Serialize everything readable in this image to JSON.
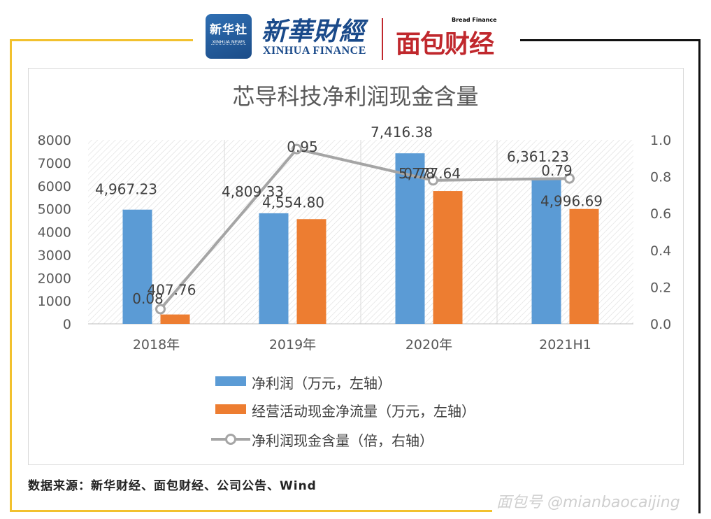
{
  "header": {
    "xinhua_logo_cn": "新华社",
    "xinhua_logo_en": "XINHUA NEWS",
    "xinhua_finance_cn": "新華財經",
    "xinhua_finance_en": "XINHUA FINANCE",
    "bread_finance_en": "Bread Finance",
    "bread_finance_cn": "面包财经"
  },
  "source_note": "数据来源：新华财经、面包财经、公司公告、Wind",
  "watermark": "面包号 @mianbaocaijing",
  "chart_data": {
    "type": "bar",
    "title": "芯导科技净利润现金含量",
    "categories": [
      "2018年",
      "2019年",
      "2020年",
      "2021H1"
    ],
    "ylim": [
      0,
      8000
    ],
    "yticks": [
      "0",
      "1000",
      "2000",
      "3000",
      "4000",
      "5000",
      "6000",
      "7000",
      "8000"
    ],
    "y2lim": [
      0,
      1.0
    ],
    "y2ticks": [
      "0.0",
      "0.2",
      "0.4",
      "0.6",
      "0.8",
      "1.0"
    ],
    "series": [
      {
        "name": "净利润（万元，左轴）",
        "type": "bar",
        "axis": "left",
        "color": "#5b9bd5",
        "values": [
          4967.23,
          4809.33,
          7416.38,
          6361.23
        ],
        "labels": [
          "4,967.23",
          "4,809.33",
          "7,416.38",
          "6,361.23"
        ]
      },
      {
        "name": "经营活动现金净流量（万元，左轴）",
        "type": "bar",
        "axis": "left",
        "color": "#ed7d31",
        "values": [
          407.76,
          4554.8,
          5777.64,
          4996.69
        ],
        "labels": [
          "407.76",
          "4,554.80",
          "5,777.64",
          "4,996.69"
        ]
      },
      {
        "name": "净利润现金含量（倍，右轴）",
        "type": "line",
        "axis": "right",
        "color": "#a5a5a5",
        "values": [
          0.08,
          0.95,
          0.78,
          0.79
        ],
        "labels": [
          "0.08",
          "0.95",
          "0.78",
          "0.79"
        ]
      }
    ],
    "grid": true,
    "legend_position": "bottom"
  }
}
